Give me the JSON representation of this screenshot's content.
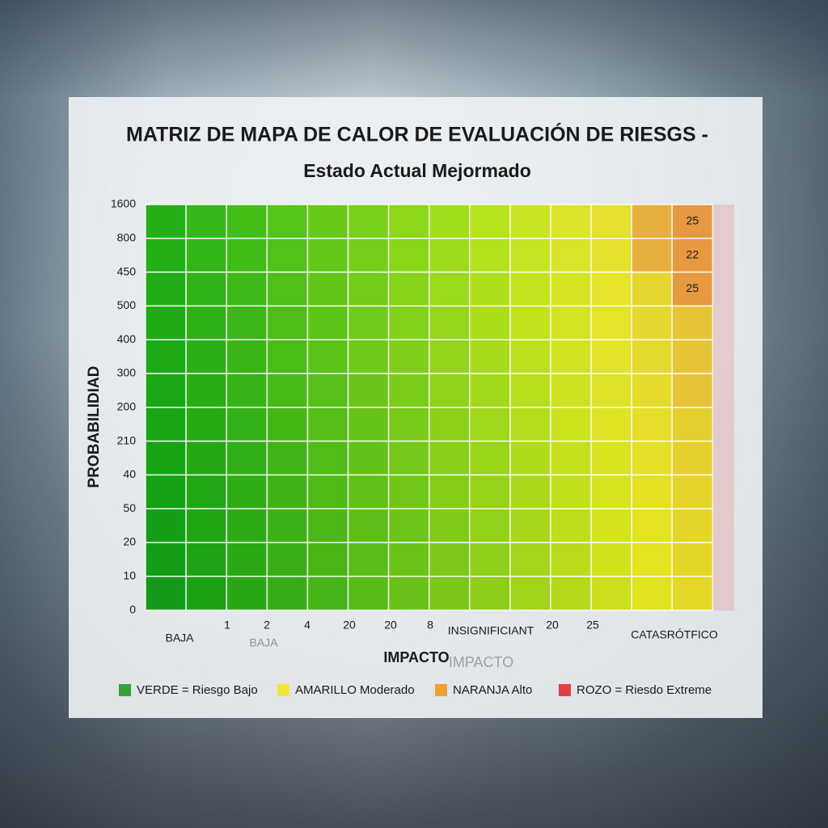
{
  "chart_data": {
    "type": "heatmap",
    "title": "MATRIZ DE MAPA DE CALOR DE EVALUACIÓN DE RIESGS -",
    "subtitle": "Estado Actual Mejormado",
    "y_label": "PROBABILIDIAD",
    "x_label": "IMPACTO",
    "y_labels": [
      1600,
      800,
      450,
      500,
      400,
      300,
      200,
      210,
      40,
      50,
      20,
      10,
      0
    ],
    "x_labels": [
      "BAJA",
      1,
      2,
      4,
      20,
      20,
      8,
      "INSIGNIFICIANT",
      20,
      25,
      "CATASRÓTFICO"
    ],
    "ghost_labels": [
      "BAJA",
      "IMPACTO"
    ],
    "cell_values": [
      25,
      22,
      25
    ],
    "legend": [
      {
        "name": "VERDE = Riesgo Bajo",
        "color": "#3aa03a"
      },
      {
        "name": "AMARILLO Moderado",
        "color": "#f2e63a"
      },
      {
        "name": "NARANJA Alto",
        "color": "#f0a030"
      },
      {
        "name": "ROZO = Riesdo Extreme",
        "color": "#e04040"
      }
    ]
  }
}
